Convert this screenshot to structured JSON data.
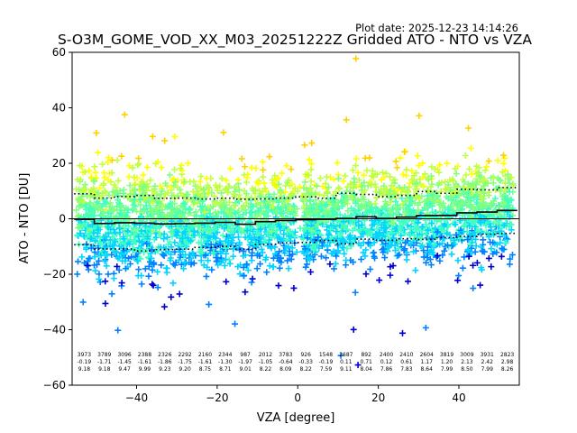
{
  "chart_data": {
    "type": "scatter",
    "title": "S-O3M_GOME_VOD_XX_M03_20251222Z Gridded ATO - NTO vs VZA",
    "plot_date": "Plot date: 2025-12-23 14:14:26",
    "xlabel": "VZA [degree]",
    "ylabel": "ATO - NTO [DU]",
    "xlim": [
      -56,
      55
    ],
    "ylim": [
      -60,
      60
    ],
    "xticks": [
      -40,
      -20,
      0,
      20,
      40
    ],
    "yticks": [
      -60,
      -40,
      -20,
      0,
      20,
      40,
      60
    ],
    "grid": false,
    "marker": "+",
    "colormap": [
      "#0000cd",
      "#0080ff",
      "#00d4ff",
      "#40ffc0",
      "#80ff80",
      "#c0ff40",
      "#ffff00",
      "#ffd000"
    ],
    "zero_line_color": "#000000",
    "stat_line_color": "#000000",
    "bins": [
      {
        "center": -53,
        "count": "3973",
        "mean": "-0.19",
        "std": "9.18"
      },
      {
        "center": -48,
        "count": "3789",
        "mean": "-1.71",
        "std": "9.18"
      },
      {
        "center": -43,
        "count": "3096",
        "mean": "-1.45",
        "std": "9.47"
      },
      {
        "center": -38,
        "count": "2388",
        "mean": "-1.61",
        "std": "9.99"
      },
      {
        "center": -33,
        "count": "2326",
        "mean": "-1.86",
        "std": "9.23"
      },
      {
        "center": -28,
        "count": "2292",
        "mean": "-1.75",
        "std": "9.20"
      },
      {
        "center": -23,
        "count": "2160",
        "mean": "-1.61",
        "std": "8.75"
      },
      {
        "center": -18,
        "count": "2344",
        "mean": "-1.30",
        "std": "8.71"
      },
      {
        "center": -13,
        "count": "987",
        "mean": "-1.97",
        "std": "9.01"
      },
      {
        "center": -8,
        "count": "2012",
        "mean": "-1.05",
        "std": "8.22"
      },
      {
        "center": -3,
        "count": "3783",
        "mean": "-0.64",
        "std": "8.09"
      },
      {
        "center": 2,
        "count": "926",
        "mean": "-0.33",
        "std": "8.22"
      },
      {
        "center": 7,
        "count": "1548",
        "mean": "-0.19",
        "std": "7.59"
      },
      {
        "center": 12,
        "count": "2687",
        "mean": "0.11",
        "std": "9.11"
      },
      {
        "center": 17,
        "count": "892",
        "mean": "0.71",
        "std": "8.04"
      },
      {
        "center": 22,
        "count": "2400",
        "mean": "0.12",
        "std": "7.86"
      },
      {
        "center": 27,
        "count": "2410",
        "mean": "0.61",
        "std": "7.83"
      },
      {
        "center": 32,
        "count": "2604",
        "mean": "1.17",
        "std": "8.64"
      },
      {
        "center": 37,
        "count": "3819",
        "mean": "1.20",
        "std": "7.99"
      },
      {
        "center": 42,
        "count": "3009",
        "mean": "2.13",
        "std": "8.50"
      },
      {
        "center": 47,
        "count": "3931",
        "mean": "2.42",
        "std": "7.99"
      },
      {
        "center": 52,
        "count": "2823",
        "mean": "2.98",
        "std": "8.26"
      }
    ]
  }
}
